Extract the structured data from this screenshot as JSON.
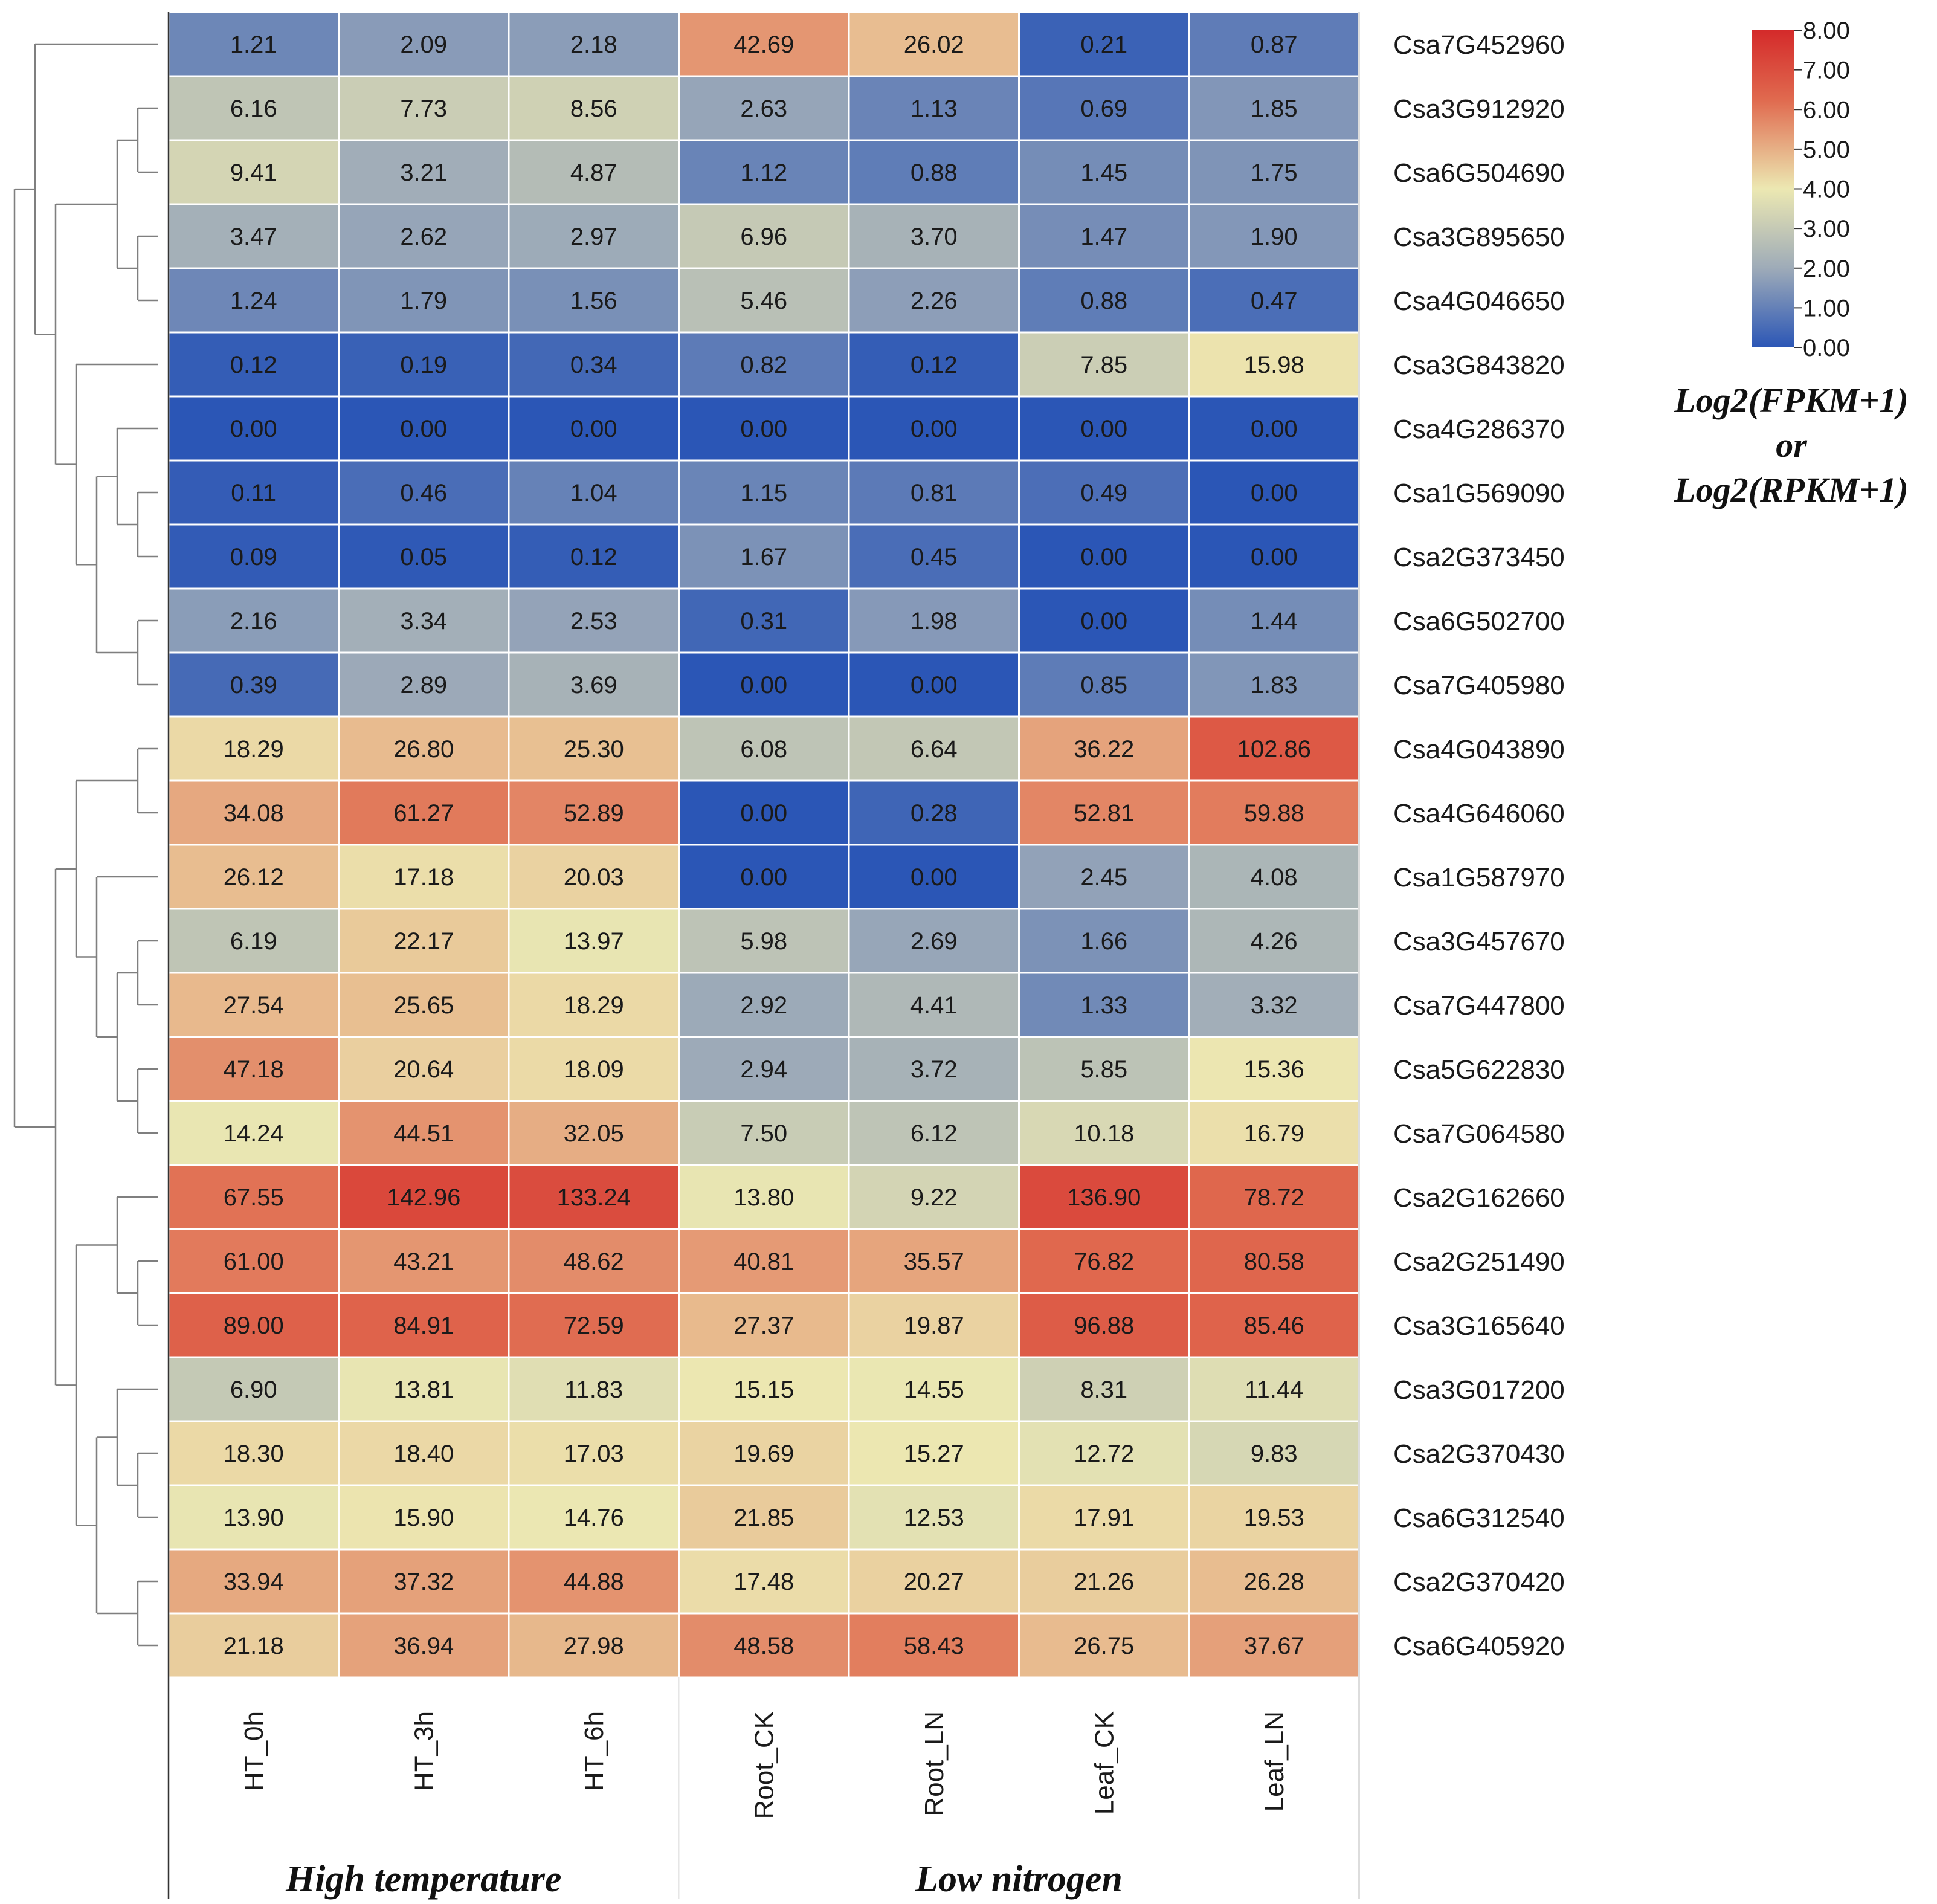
{
  "chart_data": {
    "type": "heatmap",
    "columns": [
      "HT_0h",
      "HT_3h",
      "HT_6h",
      "Root_CK",
      "Root_LN",
      "Leaf_CK",
      "Leaf_LN"
    ],
    "groups": [
      {
        "label": "High temperature",
        "columns": [
          "HT_0h",
          "HT_3h",
          "HT_6h"
        ]
      },
      {
        "label": "Low nitrogen",
        "columns": [
          "Root_CK",
          "Root_LN",
          "Leaf_CK",
          "Leaf_LN"
        ]
      }
    ],
    "rows": [
      {
        "gene": "Csa7G452960",
        "values": [
          "1.21",
          "2.09",
          "2.18",
          "42.69",
          "26.02",
          "0.21",
          "0.87"
        ]
      },
      {
        "gene": "Csa3G912920",
        "values": [
          "6.16",
          "7.73",
          "8.56",
          "2.63",
          "1.13",
          "0.69",
          "1.85"
        ]
      },
      {
        "gene": "Csa6G504690",
        "values": [
          "9.41",
          "3.21",
          "4.87",
          "1.12",
          "0.88",
          "1.45",
          "1.75"
        ]
      },
      {
        "gene": "Csa3G895650",
        "values": [
          "3.47",
          "2.62",
          "2.97",
          "6.96",
          "3.70",
          "1.47",
          "1.90"
        ]
      },
      {
        "gene": "Csa4G046650",
        "values": [
          "1.24",
          "1.79",
          "1.56",
          "5.46",
          "2.26",
          "0.88",
          "0.47"
        ]
      },
      {
        "gene": "Csa3G843820",
        "values": [
          "0.12",
          "0.19",
          "0.34",
          "0.82",
          "0.12",
          "7.85",
          "15.98"
        ]
      },
      {
        "gene": "Csa4G286370",
        "values": [
          "0.00",
          "0.00",
          "0.00",
          "0.00",
          "0.00",
          "0.00",
          "0.00"
        ]
      },
      {
        "gene": "Csa1G569090",
        "values": [
          "0.11",
          "0.46",
          "1.04",
          "1.15",
          "0.81",
          "0.49",
          "0.00"
        ]
      },
      {
        "gene": "Csa2G373450",
        "values": [
          "0.09",
          "0.05",
          "0.12",
          "1.67",
          "0.45",
          "0.00",
          "0.00"
        ]
      },
      {
        "gene": "Csa6G502700",
        "values": [
          "2.16",
          "3.34",
          "2.53",
          "0.31",
          "1.98",
          "0.00",
          "1.44"
        ]
      },
      {
        "gene": "Csa7G405980",
        "values": [
          "0.39",
          "2.89",
          "3.69",
          "0.00",
          "0.00",
          "0.85",
          "1.83"
        ]
      },
      {
        "gene": "Csa4G043890",
        "values": [
          "18.29",
          "26.80",
          "25.30",
          "6.08",
          "6.64",
          "36.22",
          "102.86"
        ]
      },
      {
        "gene": "Csa4G646060",
        "values": [
          "34.08",
          "61.27",
          "52.89",
          "0.00",
          "0.28",
          "52.81",
          "59.88"
        ]
      },
      {
        "gene": "Csa1G587970",
        "values": [
          "26.12",
          "17.18",
          "20.03",
          "0.00",
          "0.00",
          "2.45",
          "4.08"
        ]
      },
      {
        "gene": "Csa3G457670",
        "values": [
          "6.19",
          "22.17",
          "13.97",
          "5.98",
          "2.69",
          "1.66",
          "4.26"
        ]
      },
      {
        "gene": "Csa7G447800",
        "values": [
          "27.54",
          "25.65",
          "18.29",
          "2.92",
          "4.41",
          "1.33",
          "3.32"
        ]
      },
      {
        "gene": "Csa5G622830",
        "values": [
          "47.18",
          "20.64",
          "18.09",
          "2.94",
          "3.72",
          "5.85",
          "15.36"
        ]
      },
      {
        "gene": "Csa7G064580",
        "values": [
          "14.24",
          "44.51",
          "32.05",
          "7.50",
          "6.12",
          "10.18",
          "16.79"
        ]
      },
      {
        "gene": "Csa2G162660",
        "values": [
          "67.55",
          "142.96",
          "133.24",
          "13.80",
          "9.22",
          "136.90",
          "78.72"
        ]
      },
      {
        "gene": "Csa2G251490",
        "values": [
          "61.00",
          "43.21",
          "48.62",
          "40.81",
          "35.57",
          "76.82",
          "80.58"
        ]
      },
      {
        "gene": "Csa3G165640",
        "values": [
          "89.00",
          "84.91",
          "72.59",
          "27.37",
          "19.87",
          "96.88",
          "85.46"
        ]
      },
      {
        "gene": "Csa3G017200",
        "values": [
          "6.90",
          "13.81",
          "11.83",
          "15.15",
          "14.55",
          "8.31",
          "11.44"
        ]
      },
      {
        "gene": "Csa2G370430",
        "values": [
          "18.30",
          "18.40",
          "17.03",
          "19.69",
          "15.27",
          "12.72",
          "9.83"
        ]
      },
      {
        "gene": "Csa6G312540",
        "values": [
          "13.90",
          "15.90",
          "14.76",
          "21.85",
          "12.53",
          "17.91",
          "19.53"
        ]
      },
      {
        "gene": "Csa2G370420",
        "values": [
          "33.94",
          "37.32",
          "44.88",
          "17.48",
          "20.27",
          "21.26",
          "26.28"
        ]
      },
      {
        "gene": "Csa6G405920",
        "values": [
          "21.18",
          "36.94",
          "27.98",
          "48.58",
          "58.43",
          "26.75",
          "37.67"
        ]
      }
    ],
    "color_scale": {
      "transform": "log2(x+1)",
      "range": [
        0,
        8
      ],
      "ticks": [
        "8.00",
        "7.00",
        "6.00",
        "5.00",
        "4.00",
        "3.00",
        "2.00",
        "1.00",
        "0.00"
      ],
      "colors": [
        "#2b56b6",
        "#9eabb8",
        "#ece8b2",
        "#e06a4f",
        "#d42a2a"
      ]
    },
    "legend": {
      "title_lines": [
        "Log2(FPKM+1)",
        "or",
        "Log2(RPKM+1)"
      ],
      "placement": "top-right"
    },
    "dendrogram": {
      "side": "left",
      "color": "#7f7f7f"
    },
    "grid_color": "#ffffff"
  }
}
